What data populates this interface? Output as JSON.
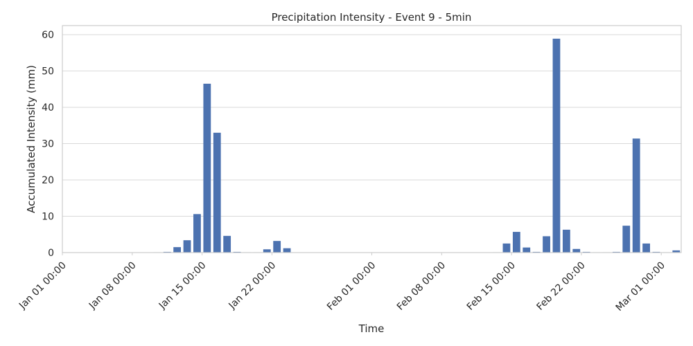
{
  "chart_data": {
    "type": "bar",
    "title": "Precipitation Intensity - Event 9 - 5min",
    "xlabel": "Time",
    "ylabel": "Accumulated Intensity (mm)",
    "ylim": [
      0,
      62.5
    ],
    "yticks": [
      0,
      10,
      20,
      30,
      40,
      50,
      60
    ],
    "xlim": [
      "2024-01-01",
      "2024-03-03"
    ],
    "xtick_dates": [
      "2024-01-01",
      "2024-01-08",
      "2024-01-15",
      "2024-01-22",
      "2024-02-01",
      "2024-02-08",
      "2024-02-15",
      "2024-02-22",
      "2024-03-01"
    ],
    "xticks": [
      "Jan 01 00:00",
      "Jan 08 00:00",
      "Jan 15 00:00",
      "Jan 22 00:00",
      "Feb 01 00:00",
      "Feb 08 00:00",
      "Feb 15 00:00",
      "Feb 22 00:00",
      "Mar 01 00:00"
    ],
    "grid": true,
    "bar_color": "#4c72b0",
    "x": [
      "2024-01-10",
      "2024-01-11",
      "2024-01-12",
      "2024-01-13",
      "2024-01-14",
      "2024-01-15",
      "2024-01-16",
      "2024-01-17",
      "2024-01-18",
      "2024-01-19",
      "2024-01-20",
      "2024-01-21",
      "2024-01-22",
      "2024-01-23",
      "2024-02-13",
      "2024-02-14",
      "2024-02-15",
      "2024-02-16",
      "2024-02-17",
      "2024-02-18",
      "2024-02-19",
      "2024-02-20",
      "2024-02-21",
      "2024-02-22",
      "2024-02-23",
      "2024-02-24",
      "2024-02-25",
      "2024-02-26",
      "2024-02-27",
      "2024-02-28",
      "2024-02-29",
      "2024-03-01",
      "2024-03-02"
    ],
    "values": [
      0.1,
      0.2,
      1.5,
      3.4,
      10.6,
      46.5,
      33.0,
      4.6,
      0.2,
      0.1,
      0.1,
      0.9,
      3.2,
      1.2,
      0.1,
      2.5,
      5.7,
      1.4,
      0.2,
      4.5,
      58.9,
      6.3,
      1.0,
      0.2,
      0.1,
      0.1,
      0.2,
      7.4,
      31.4,
      2.5,
      0.2,
      0.1,
      0.6
    ]
  }
}
